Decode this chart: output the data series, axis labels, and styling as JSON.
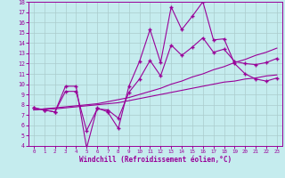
{
  "xlabel": "Windchill (Refroidissement éolien,°C)",
  "xlim": [
    -0.5,
    23.5
  ],
  "ylim": [
    4,
    18
  ],
  "xticks": [
    0,
    1,
    2,
    3,
    4,
    5,
    6,
    7,
    8,
    9,
    10,
    11,
    12,
    13,
    14,
    15,
    16,
    17,
    18,
    19,
    20,
    21,
    22,
    23
  ],
  "yticks": [
    4,
    5,
    6,
    7,
    8,
    9,
    10,
    11,
    12,
    13,
    14,
    15,
    16,
    17,
    18
  ],
  "background_color": "#c5ecee",
  "grid_color": "#aacccc",
  "line_color": "#990099",
  "line1_x": [
    0,
    1,
    2,
    3,
    4,
    5,
    6,
    7,
    8,
    9,
    10,
    11,
    12,
    13,
    14,
    15,
    16,
    17,
    18,
    19,
    20,
    21,
    22,
    23
  ],
  "line1_y": [
    7.7,
    7.5,
    7.3,
    9.8,
    9.8,
    3.8,
    7.7,
    7.3,
    5.7,
    9.8,
    12.2,
    15.3,
    12.1,
    17.5,
    15.3,
    16.6,
    18.0,
    14.3,
    14.4,
    12.0,
    11.0,
    10.5,
    10.3,
    10.6
  ],
  "line2_x": [
    0,
    1,
    2,
    3,
    4,
    5,
    6,
    7,
    8,
    9,
    10,
    11,
    12,
    13,
    14,
    15,
    16,
    17,
    18,
    19,
    20,
    21,
    22,
    23
  ],
  "line2_y": [
    7.5,
    7.6,
    7.7,
    7.8,
    7.9,
    8.0,
    8.1,
    8.3,
    8.5,
    8.7,
    9.0,
    9.3,
    9.6,
    10.0,
    10.3,
    10.7,
    11.0,
    11.4,
    11.7,
    12.1,
    12.4,
    12.8,
    13.1,
    13.5
  ],
  "line3_x": [
    0,
    1,
    2,
    3,
    4,
    5,
    6,
    7,
    8,
    9,
    10,
    11,
    12,
    13,
    14,
    15,
    16,
    17,
    18,
    19,
    20,
    21,
    22,
    23
  ],
  "line3_y": [
    7.7,
    7.5,
    7.3,
    9.3,
    9.3,
    5.5,
    7.6,
    7.5,
    6.7,
    9.2,
    10.5,
    12.3,
    10.8,
    13.8,
    12.8,
    13.6,
    14.5,
    13.1,
    13.4,
    12.2,
    12.0,
    11.9,
    12.1,
    12.5
  ],
  "line4_x": [
    0,
    1,
    2,
    3,
    4,
    5,
    6,
    7,
    8,
    9,
    10,
    11,
    12,
    13,
    14,
    15,
    16,
    17,
    18,
    19,
    20,
    21,
    22,
    23
  ],
  "line4_y": [
    7.5,
    7.6,
    7.6,
    7.7,
    7.8,
    7.9,
    8.0,
    8.1,
    8.2,
    8.4,
    8.6,
    8.8,
    9.0,
    9.2,
    9.4,
    9.6,
    9.8,
    10.0,
    10.2,
    10.3,
    10.5,
    10.6,
    10.8,
    10.9
  ]
}
